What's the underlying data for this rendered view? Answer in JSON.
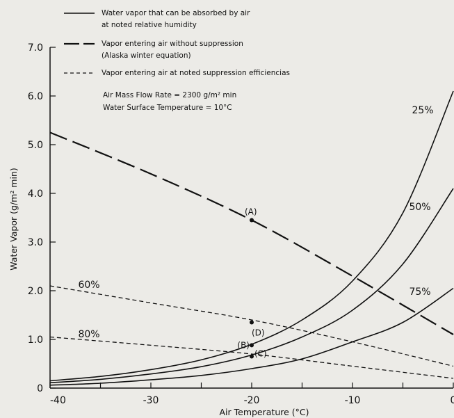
{
  "chart_data": {
    "type": "line",
    "xlabel": "Air Temperature (°C)",
    "ylabel": "Water Vapor (g/m² min)",
    "xlim": [
      -40,
      0
    ],
    "ylim": [
      0,
      7.0
    ],
    "x_ticks": [
      "-40",
      "-30",
      "-20",
      "-10",
      "0"
    ],
    "y_ticks": [
      "0",
      "1.0",
      "2.0",
      "3.0",
      "4.0",
      "5.0",
      "6.0",
      "7.0"
    ],
    "legend": [
      {
        "style": "solid",
        "lines": [
          "Water vapor that can be absorbed by air",
          "at noted relative humidity"
        ]
      },
      {
        "style": "long-dash",
        "lines": [
          "Vapor entering air without suppression",
          "(Alaska winter equation)"
        ]
      },
      {
        "style": "short-dash",
        "lines": [
          "Vapor entering air at noted suppression efficiencias"
        ]
      }
    ],
    "annotations": [
      "Air Mass Flow Rate = 2300 g/m² min",
      "Water Surface Temperature = 10°C"
    ],
    "series": [
      {
        "name": "25%",
        "style": "solid",
        "x": [
          -40,
          -35,
          -30,
          -25,
          -20,
          -15,
          -10,
          -5,
          0
        ],
        "y": [
          0.15,
          0.24,
          0.38,
          0.58,
          0.9,
          1.4,
          2.2,
          3.6,
          6.1
        ]
      },
      {
        "name": "50%",
        "style": "solid",
        "x": [
          -40,
          -35,
          -30,
          -25,
          -20,
          -15,
          -10,
          -5,
          0
        ],
        "y": [
          0.11,
          0.18,
          0.29,
          0.44,
          0.68,
          1.05,
          1.6,
          2.55,
          4.1
        ]
      },
      {
        "name": "75%",
        "style": "solid",
        "x": [
          -40,
          -35,
          -30,
          -25,
          -20,
          -15,
          -10,
          -5,
          0
        ],
        "y": [
          0.06,
          0.1,
          0.17,
          0.26,
          0.4,
          0.6,
          0.95,
          1.35,
          2.05
        ]
      },
      {
        "style": "long-dash",
        "x": [
          -40,
          -30,
          -20,
          -10,
          0
        ],
        "y": [
          5.25,
          4.4,
          3.45,
          2.3,
          1.1
        ]
      },
      {
        "name": "60%",
        "style": "short-dash",
        "x": [
          -40,
          -30,
          -20,
          -10,
          0
        ],
        "y": [
          2.1,
          1.75,
          1.4,
          0.95,
          0.45
        ]
      },
      {
        "name": "80%",
        "style": "short-dash",
        "x": [
          -40,
          -30,
          -20,
          -10,
          0
        ],
        "y": [
          1.05,
          0.88,
          0.7,
          0.45,
          0.2
        ]
      }
    ],
    "points": [
      {
        "label": "(A)",
        "x": -20,
        "y": 3.45
      },
      {
        "label": "(D)",
        "x": -20,
        "y": 1.35
      },
      {
        "label": "(B)",
        "x": -20,
        "y": 0.88
      },
      {
        "label": "(C)",
        "x": -20,
        "y": 0.65
      }
    ],
    "grid": false
  }
}
